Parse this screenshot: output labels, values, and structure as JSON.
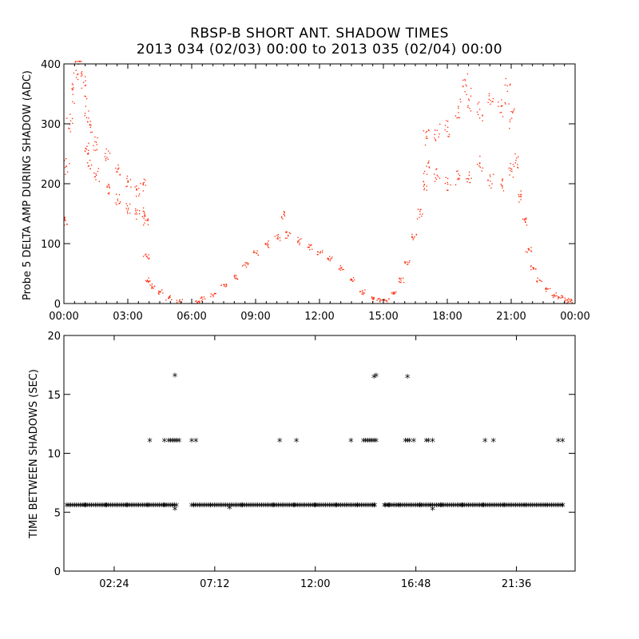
{
  "title": {
    "line1": "RBSP-B SHORT ANT. SHADOW TIMES",
    "line2": "2013 034 (02/03) 00:00 to 2013 035 (02/04) 00:00"
  },
  "colors": {
    "top_series": "#ff2200",
    "bottom_series": "#000000",
    "axes": "#000000"
  },
  "chart_data": [
    {
      "type": "scatter",
      "ylabel": "Probe 5 DELTA AMP DURING SHADOW (ADC)",
      "xlim_hours": [
        0,
        24
      ],
      "ylim": [
        0,
        400
      ],
      "xtick_labels": [
        "00:00",
        "03:00",
        "06:00",
        "09:00",
        "12:00",
        "15:00",
        "18:00",
        "21:00",
        "00:00"
      ],
      "ytick_labels": [
        "0",
        "100",
        "200",
        "300",
        "400"
      ],
      "series": [
        {
          "color": "#ff2200",
          "points": [
            [
              0.0,
              140
            ],
            [
              0.1,
              230
            ],
            [
              0.25,
              300
            ],
            [
              0.4,
              350
            ],
            [
              0.55,
              390
            ],
            [
              0.7,
              405
            ],
            [
              0.9,
              370
            ],
            [
              1.0,
              330
            ],
            [
              1.0,
              260
            ],
            [
              1.2,
              300
            ],
            [
              1.2,
              240
            ],
            [
              1.5,
              270
            ],
            [
              1.5,
              215
            ],
            [
              2.0,
              245
            ],
            [
              2.0,
              195
            ],
            [
              2.5,
              225
            ],
            [
              2.5,
              175
            ],
            [
              3.0,
              205
            ],
            [
              3.0,
              160
            ],
            [
              3.4,
              190
            ],
            [
              3.4,
              150
            ],
            [
              3.7,
              200
            ],
            [
              3.7,
              155
            ],
            [
              3.8,
              140
            ],
            [
              3.85,
              80
            ],
            [
              3.9,
              40
            ],
            [
              4.1,
              30
            ],
            [
              4.5,
              20
            ],
            [
              4.9,
              10
            ],
            [
              5.4,
              5
            ],
            [
              6.2,
              5
            ],
            [
              6.5,
              8
            ],
            [
              7.0,
              15
            ],
            [
              7.5,
              30
            ],
            [
              8.0,
              45
            ],
            [
              8.5,
              65
            ],
            [
              9.0,
              85
            ],
            [
              9.5,
              100
            ],
            [
              10.0,
              110
            ],
            [
              10.3,
              150
            ],
            [
              10.5,
              115
            ],
            [
              11.0,
              105
            ],
            [
              11.5,
              95
            ],
            [
              12.0,
              85
            ],
            [
              12.5,
              75
            ],
            [
              13.0,
              60
            ],
            [
              13.5,
              40
            ],
            [
              14.0,
              20
            ],
            [
              14.5,
              8
            ],
            [
              14.8,
              5
            ],
            [
              15.1,
              5
            ],
            [
              15.5,
              20
            ],
            [
              15.8,
              40
            ],
            [
              16.1,
              70
            ],
            [
              16.4,
              110
            ],
            [
              16.7,
              150
            ],
            [
              16.9,
              200
            ],
            [
              17.0,
              230
            ],
            [
              17.0,
              280
            ],
            [
              17.5,
              290
            ],
            [
              17.5,
              215
            ],
            [
              18.0,
              295
            ],
            [
              18.0,
              200
            ],
            [
              18.5,
              330
            ],
            [
              18.5,
              210
            ],
            [
              18.8,
              375
            ],
            [
              19.0,
              340
            ],
            [
              19.0,
              215
            ],
            [
              19.5,
              325
            ],
            [
              19.5,
              235
            ],
            [
              20.0,
              340
            ],
            [
              20.0,
              205
            ],
            [
              20.5,
              330
            ],
            [
              20.5,
              200
            ],
            [
              20.8,
              355
            ],
            [
              21.0,
              310
            ],
            [
              21.0,
              225
            ],
            [
              21.2,
              240
            ],
            [
              21.4,
              180
            ],
            [
              21.6,
              140
            ],
            [
              21.8,
              90
            ],
            [
              22.0,
              60
            ],
            [
              22.3,
              40
            ],
            [
              22.7,
              25
            ],
            [
              23.0,
              15
            ],
            [
              23.3,
              10
            ],
            [
              23.6,
              6
            ],
            [
              23.75,
              4
            ]
          ]
        }
      ]
    },
    {
      "type": "scatter",
      "ylabel": "TIME BETWEEN SHADOWS (SEC)",
      "xlim_hours": [
        0,
        24.4
      ],
      "ylim": [
        0,
        20
      ],
      "xtick_labels": [
        "02:24",
        "07:12",
        "12:00",
        "16:48",
        "21:36"
      ],
      "ytick_labels": [
        "0",
        "5",
        "10",
        "15",
        "20"
      ],
      "series": [
        {
          "marker": "asterisk",
          "color": "#000000",
          "points": [
            [
              0.15,
              5.5
            ],
            [
              1.0,
              5.5
            ],
            [
              2.0,
              5.5
            ],
            [
              3.0,
              5.5
            ],
            [
              4.0,
              5.5
            ],
            [
              4.8,
              5.5
            ],
            [
              5.2,
              5.5
            ],
            [
              5.3,
              5.2
            ],
            [
              6.2,
              5.5
            ],
            [
              7.0,
              5.5
            ],
            [
              7.9,
              5.3
            ],
            [
              8.5,
              5.5
            ],
            [
              10.0,
              5.5
            ],
            [
              11.0,
              5.5
            ],
            [
              12.0,
              5.5
            ],
            [
              13.0,
              5.5
            ],
            [
              14.0,
              5.5
            ],
            [
              14.8,
              5.5
            ],
            [
              15.3,
              5.5
            ],
            [
              15.5,
              5.5
            ],
            [
              16.0,
              5.5
            ],
            [
              17.0,
              5.5
            ],
            [
              17.5,
              5.5
            ],
            [
              17.6,
              5.2
            ],
            [
              18.0,
              5.5
            ],
            [
              19.0,
              5.5
            ],
            [
              20.0,
              5.5
            ],
            [
              21.0,
              5.5
            ],
            [
              22.0,
              5.5
            ],
            [
              23.0,
              5.5
            ],
            [
              23.8,
              5.5
            ],
            [
              4.1,
              11
            ],
            [
              4.8,
              11
            ],
            [
              5.0,
              11
            ],
            [
              5.1,
              11
            ],
            [
              5.2,
              11
            ],
            [
              5.3,
              11
            ],
            [
              5.4,
              11
            ],
            [
              5.5,
              11
            ],
            [
              6.1,
              11
            ],
            [
              6.3,
              11
            ],
            [
              10.3,
              11
            ],
            [
              11.1,
              11
            ],
            [
              13.7,
              11
            ],
            [
              14.3,
              11
            ],
            [
              14.4,
              11
            ],
            [
              14.5,
              11
            ],
            [
              14.6,
              11
            ],
            [
              14.7,
              11
            ],
            [
              14.8,
              11
            ],
            [
              14.9,
              11
            ],
            [
              16.3,
              11
            ],
            [
              16.4,
              11
            ],
            [
              16.5,
              11
            ],
            [
              16.7,
              11
            ],
            [
              17.3,
              11
            ],
            [
              17.4,
              11
            ],
            [
              17.6,
              11
            ],
            [
              20.1,
              11
            ],
            [
              20.5,
              11
            ],
            [
              23.6,
              11
            ],
            [
              23.8,
              11
            ],
            [
              5.3,
              16.5
            ],
            [
              14.8,
              16.4
            ],
            [
              14.9,
              16.5
            ],
            [
              16.4,
              16.4
            ]
          ]
        }
      ]
    }
  ]
}
